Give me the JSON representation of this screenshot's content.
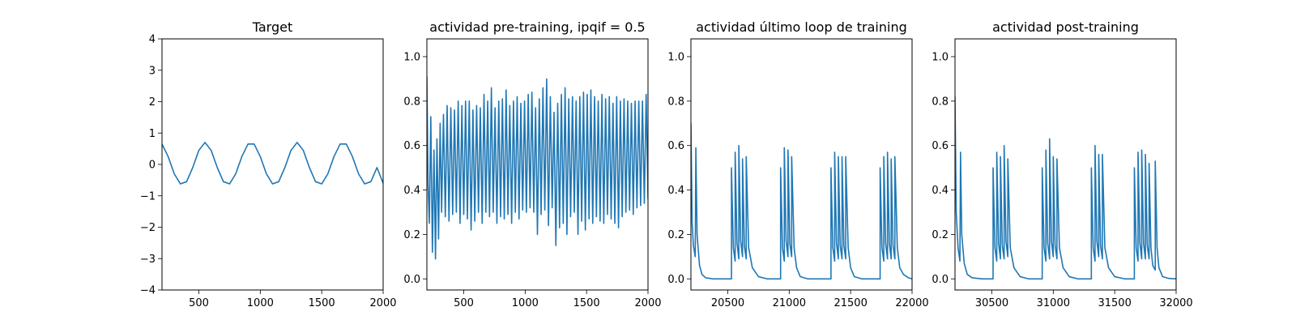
{
  "chart_data": [
    {
      "type": "line",
      "title": "Target",
      "xlim": [
        200,
        2000
      ],
      "ylim": [
        -4,
        4
      ],
      "xticks": [
        500,
        1000,
        1500,
        2000
      ],
      "yticks": [
        -4,
        -3,
        -2,
        -1,
        0,
        1,
        2,
        3,
        4
      ],
      "series": [
        {
          "color": "#1f77b4",
          "x": [
            200,
            250,
            300,
            350,
            400,
            450,
            500,
            550,
            600,
            650,
            700,
            750,
            800,
            850,
            900,
            950,
            1000,
            1050,
            1100,
            1150,
            1200,
            1250,
            1300,
            1350,
            1400,
            1450,
            1500,
            1550,
            1600,
            1650,
            1700,
            1750,
            1800,
            1850,
            1900,
            1950,
            2000
          ],
          "y": [
            0.65,
            0.25,
            -0.3,
            -0.62,
            -0.55,
            -0.1,
            0.45,
            0.7,
            0.45,
            -0.1,
            -0.55,
            -0.62,
            -0.3,
            0.25,
            0.65,
            0.65,
            0.25,
            -0.3,
            -0.62,
            -0.55,
            -0.1,
            0.45,
            0.7,
            0.45,
            -0.1,
            -0.55,
            -0.62,
            -0.3,
            0.25,
            0.65,
            0.65,
            0.25,
            -0.3,
            -0.62,
            -0.55,
            -0.1,
            -0.6
          ]
        }
      ]
    },
    {
      "type": "line",
      "title": "actividad pre-training, ipqif = 0.5",
      "xlim": [
        200,
        2000
      ],
      "ylim": [
        -0.05,
        1.08
      ],
      "xticks": [
        500,
        1000,
        1500,
        2000
      ],
      "yticks": [
        0.0,
        0.2,
        0.4,
        0.6,
        0.8,
        1.0
      ],
      "series": [
        {
          "color": "#1f77b4",
          "x": [
            200,
            210,
            220,
            232,
            245,
            258,
            270,
            282,
            295,
            308,
            320,
            335,
            350,
            365,
            380,
            395,
            410,
            425,
            440,
            455,
            470,
            485,
            500,
            515,
            530,
            545,
            560,
            575,
            590,
            605,
            620,
            635,
            650,
            665,
            680,
            695,
            710,
            725,
            740,
            755,
            770,
            785,
            800,
            815,
            830,
            845,
            860,
            875,
            890,
            905,
            920,
            935,
            950,
            965,
            980,
            995,
            1010,
            1025,
            1040,
            1055,
            1070,
            1085,
            1100,
            1115,
            1130,
            1145,
            1160,
            1175,
            1190,
            1205,
            1220,
            1235,
            1250,
            1265,
            1280,
            1295,
            1310,
            1325,
            1340,
            1355,
            1370,
            1385,
            1400,
            1415,
            1430,
            1445,
            1460,
            1475,
            1490,
            1505,
            1520,
            1535,
            1550,
            1565,
            1580,
            1595,
            1610,
            1625,
            1640,
            1655,
            1670,
            1685,
            1700,
            1715,
            1730,
            1745,
            1760,
            1775,
            1790,
            1805,
            1820,
            1835,
            1850,
            1865,
            1880,
            1895,
            1910,
            1925,
            1940,
            1955,
            1970,
            1985,
            2000
          ],
          "y": [
            0.91,
            0.42,
            0.25,
            0.73,
            0.12,
            0.58,
            0.09,
            0.63,
            0.18,
            0.7,
            0.3,
            0.74,
            0.28,
            0.78,
            0.26,
            0.77,
            0.29,
            0.76,
            0.3,
            0.8,
            0.25,
            0.78,
            0.29,
            0.8,
            0.27,
            0.8,
            0.22,
            0.76,
            0.26,
            0.78,
            0.3,
            0.77,
            0.25,
            0.83,
            0.3,
            0.8,
            0.28,
            0.86,
            0.3,
            0.77,
            0.25,
            0.8,
            0.28,
            0.81,
            0.27,
            0.85,
            0.29,
            0.78,
            0.25,
            0.8,
            0.3,
            0.82,
            0.27,
            0.79,
            0.31,
            0.8,
            0.3,
            0.83,
            0.32,
            0.84,
            0.3,
            0.77,
            0.2,
            0.81,
            0.29,
            0.86,
            0.31,
            0.9,
            0.24,
            0.82,
            0.32,
            0.75,
            0.15,
            0.79,
            0.23,
            0.83,
            0.25,
            0.86,
            0.2,
            0.81,
            0.28,
            0.82,
            0.3,
            0.8,
            0.2,
            0.82,
            0.26,
            0.84,
            0.22,
            0.83,
            0.27,
            0.85,
            0.25,
            0.82,
            0.28,
            0.8,
            0.26,
            0.83,
            0.25,
            0.81,
            0.29,
            0.82,
            0.27,
            0.79,
            0.25,
            0.82,
            0.23,
            0.8,
            0.28,
            0.81,
            0.3,
            0.8,
            0.31,
            0.79,
            0.29,
            0.8,
            0.32,
            0.8,
            0.33,
            0.8,
            0.34,
            0.83,
            0.36
          ]
        }
      ]
    },
    {
      "type": "line",
      "title": "actividad último loop de training",
      "xlim": [
        20200,
        22000
      ],
      "ylim": [
        -0.05,
        1.08
      ],
      "xticks": [
        20500,
        21000,
        21500,
        22000
      ],
      "yticks": [
        0.0,
        0.2,
        0.4,
        0.6,
        0.8,
        1.0
      ],
      "series": [
        {
          "color": "#1f77b4",
          "x": [
            20200,
            20210,
            20220,
            20235,
            20240,
            20250,
            20270,
            20290,
            20320,
            20380,
            20450,
            20500,
            20530,
            20530,
            20545,
            20560,
            20560,
            20575,
            20590,
            20590,
            20605,
            20620,
            20620,
            20635,
            20650,
            20650,
            20670,
            20700,
            20750,
            20820,
            20900,
            20930,
            20930,
            20945,
            20960,
            20960,
            20975,
            20990,
            20990,
            21005,
            21020,
            21020,
            21040,
            21060,
            21090,
            21150,
            21250,
            21340,
            21340,
            21355,
            21370,
            21370,
            21385,
            21400,
            21400,
            21415,
            21430,
            21430,
            21445,
            21460,
            21460,
            21480,
            21500,
            21530,
            21590,
            21680,
            21740,
            21740,
            21755,
            21770,
            21770,
            21785,
            21800,
            21800,
            21815,
            21830,
            21830,
            21845,
            21860,
            21860,
            21880,
            21900,
            21930,
            21970,
            22000
          ],
          "y": [
            0.7,
            0.25,
            0.15,
            0.1,
            0.59,
            0.2,
            0.06,
            0.02,
            0.005,
            0.0,
            0.0,
            0.0,
            0.0,
            0.5,
            0.14,
            0.08,
            0.57,
            0.16,
            0.09,
            0.6,
            0.17,
            0.1,
            0.54,
            0.15,
            0.09,
            0.55,
            0.14,
            0.05,
            0.01,
            0.0,
            0.0,
            0.0,
            0.5,
            0.14,
            0.08,
            0.59,
            0.17,
            0.1,
            0.58,
            0.16,
            0.1,
            0.55,
            0.14,
            0.05,
            0.01,
            0.0,
            0.0,
            0.0,
            0.5,
            0.14,
            0.08,
            0.57,
            0.16,
            0.09,
            0.55,
            0.15,
            0.09,
            0.55,
            0.15,
            0.09,
            0.55,
            0.14,
            0.05,
            0.01,
            0.0,
            0.0,
            0.0,
            0.5,
            0.14,
            0.08,
            0.55,
            0.16,
            0.09,
            0.57,
            0.16,
            0.09,
            0.54,
            0.15,
            0.09,
            0.55,
            0.14,
            0.05,
            0.02,
            0.005,
            0.0
          ]
        }
      ]
    },
    {
      "type": "line",
      "title": "actividad post-training",
      "xlim": [
        30200,
        32000
      ],
      "ylim": [
        -0.05,
        1.08
      ],
      "xticks": [
        30500,
        31000,
        31500,
        32000
      ],
      "yticks": [
        0.0,
        0.2,
        0.4,
        0.6,
        0.8,
        1.0
      ],
      "series": [
        {
          "color": "#1f77b4",
          "x": [
            30200,
            30210,
            30225,
            30240,
            30245,
            30255,
            30275,
            30300,
            30340,
            30420,
            30500,
            30510,
            30510,
            30525,
            30540,
            30540,
            30555,
            30570,
            30570,
            30585,
            30600,
            30600,
            30615,
            30630,
            30630,
            30650,
            30680,
            30730,
            30800,
            30880,
            30910,
            30910,
            30925,
            30940,
            30940,
            30955,
            30970,
            30970,
            30985,
            31000,
            31000,
            31015,
            31030,
            31030,
            31050,
            31080,
            31130,
            31200,
            31280,
            31310,
            31310,
            31325,
            31340,
            31340,
            31355,
            31370,
            31370,
            31385,
            31400,
            31400,
            31420,
            31450,
            31500,
            31580,
            31660,
            31660,
            31675,
            31690,
            31690,
            31705,
            31720,
            31720,
            31735,
            31750,
            31750,
            31765,
            31780,
            31780,
            31795,
            31810,
            31830,
            31830,
            31845,
            31860,
            31890,
            31940,
            32000
          ],
          "y": [
            0.82,
            0.3,
            0.14,
            0.08,
            0.57,
            0.2,
            0.07,
            0.02,
            0.005,
            0.0,
            0.0,
            0.0,
            0.5,
            0.14,
            0.08,
            0.57,
            0.16,
            0.09,
            0.55,
            0.15,
            0.09,
            0.6,
            0.17,
            0.1,
            0.54,
            0.14,
            0.05,
            0.01,
            0.0,
            0.0,
            0.0,
            0.5,
            0.14,
            0.08,
            0.58,
            0.16,
            0.09,
            0.63,
            0.17,
            0.1,
            0.55,
            0.15,
            0.09,
            0.54,
            0.14,
            0.05,
            0.01,
            0.0,
            0.0,
            0.0,
            0.5,
            0.14,
            0.08,
            0.6,
            0.17,
            0.1,
            0.56,
            0.15,
            0.09,
            0.56,
            0.14,
            0.05,
            0.01,
            0.0,
            0.0,
            0.5,
            0.14,
            0.08,
            0.57,
            0.16,
            0.09,
            0.58,
            0.16,
            0.09,
            0.56,
            0.15,
            0.09,
            0.52,
            0.14,
            0.06,
            0.04,
            0.53,
            0.14,
            0.05,
            0.01,
            0.002,
            0.0
          ]
        }
      ]
    }
  ]
}
